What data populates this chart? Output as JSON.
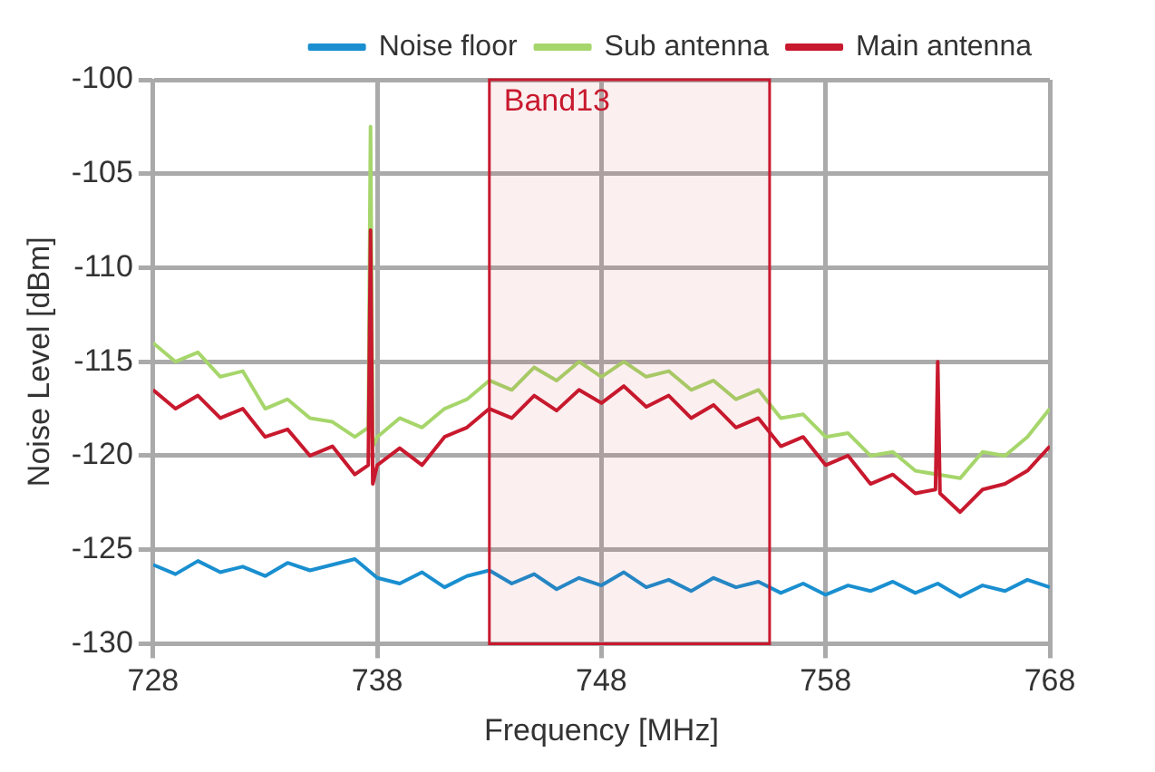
{
  "chart_data": {
    "type": "line",
    "xlabel": "Frequency [MHz]",
    "ylabel": "Noise Level [dBm]",
    "xlim": [
      728,
      768
    ],
    "xticks": [
      728,
      738,
      748,
      758,
      768
    ],
    "ylim": [
      -130,
      -100
    ],
    "yticks": [
      -130,
      -125,
      -120,
      -115,
      -110,
      -105,
      -100
    ],
    "grid": true,
    "legend": "top right",
    "bands": [
      {
        "axis": "x",
        "from": 743,
        "to": 755.5,
        "label": "Band13",
        "color": "#c8192e"
      }
    ],
    "series": [
      {
        "name": "Noise floor",
        "color": "#1a8fd0",
        "x": [
          728,
          729,
          730,
          731,
          732,
          733,
          734,
          735,
          736,
          737,
          738,
          739,
          740,
          741,
          742,
          743,
          744,
          745,
          746,
          747,
          748,
          749,
          750,
          751,
          752,
          753,
          754,
          755,
          756,
          757,
          758,
          759,
          760,
          761,
          762,
          763,
          764,
          765,
          766,
          767,
          768
        ],
        "values": [
          -125.8,
          -126.3,
          -125.6,
          -126.2,
          -125.9,
          -126.4,
          -125.7,
          -126.1,
          -125.8,
          -125.5,
          -126.5,
          -126.8,
          -126.2,
          -127,
          -126.4,
          -126.1,
          -126.8,
          -126.3,
          -127.1,
          -126.5,
          -126.9,
          -126.2,
          -127,
          -126.6,
          -127.2,
          -126.5,
          -127,
          -126.7,
          -127.3,
          -126.8,
          -127.4,
          -126.9,
          -127.2,
          -126.7,
          -127.3,
          -126.8,
          -127.5,
          -126.9,
          -127.2,
          -126.6,
          -127
        ]
      },
      {
        "name": "Sub antenna",
        "color": "#a6d66b",
        "x": [
          728,
          729,
          730,
          731,
          732,
          733,
          734,
          735,
          736,
          737,
          737.6,
          737.7,
          737.8,
          738,
          739,
          740,
          741,
          742,
          743,
          744,
          745,
          746,
          747,
          748,
          749,
          750,
          751,
          752,
          753,
          754,
          755,
          756,
          757,
          758,
          759,
          760,
          761,
          762,
          764,
          765,
          766,
          767,
          768
        ],
        "values": [
          -114,
          -115,
          -114.5,
          -115.8,
          -115.5,
          -117.5,
          -117,
          -118,
          -118.2,
          -119,
          -118.5,
          -102.5,
          -119.5,
          -119,
          -118,
          -118.5,
          -117.5,
          -117,
          -116,
          -116.5,
          -115.3,
          -116,
          -115,
          -115.8,
          -115,
          -115.8,
          -115.5,
          -116.5,
          -116,
          -117,
          -116.5,
          -118,
          -117.8,
          -119,
          -118.8,
          -120,
          -119.8,
          -120.8,
          -121.2,
          -119.8,
          -120,
          -119,
          -117.5
        ]
      },
      {
        "name": "Main antenna",
        "color": "#c8192e",
        "x": [
          728,
          729,
          730,
          731,
          732,
          733,
          734,
          735,
          736,
          737,
          737.6,
          737.7,
          737.8,
          738,
          739,
          740,
          741,
          742,
          743,
          744,
          745,
          746,
          747,
          748,
          749,
          750,
          751,
          752,
          753,
          754,
          755,
          756,
          757,
          758,
          759,
          760,
          761,
          762,
          762.9,
          763,
          763.1,
          764,
          765,
          766,
          767,
          768
        ],
        "values": [
          -116.5,
          -117.5,
          -116.8,
          -118,
          -117.5,
          -119,
          -118.6,
          -120,
          -119.5,
          -121,
          -120.5,
          -108,
          -121.5,
          -120.5,
          -119.6,
          -120.5,
          -119,
          -118.5,
          -117.5,
          -118,
          -116.8,
          -117.6,
          -116.5,
          -117.2,
          -116.3,
          -117.4,
          -116.8,
          -118,
          -117.3,
          -118.5,
          -118,
          -119.5,
          -119,
          -120.5,
          -120,
          -121.5,
          -121,
          -122,
          -121.8,
          -115,
          -122,
          -123,
          -121.8,
          -121.5,
          -120.8,
          -119.5
        ]
      }
    ]
  }
}
